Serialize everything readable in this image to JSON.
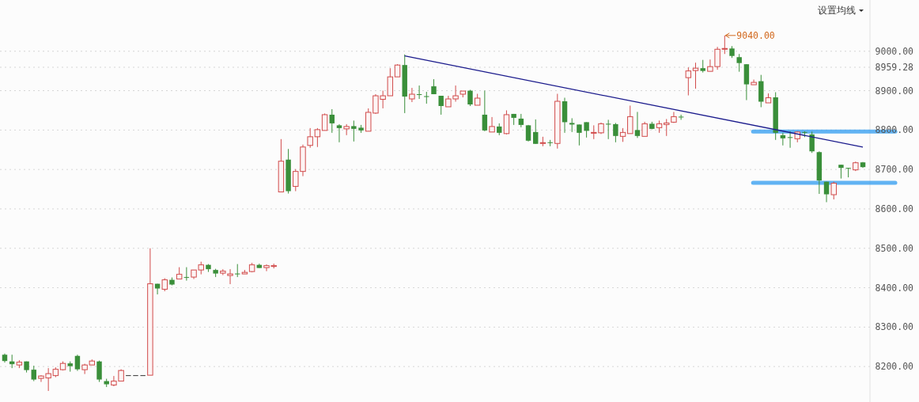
{
  "chart_data": {
    "type": "candlestick",
    "annotations": [
      "设置均线",
      "9040.00"
    ],
    "categories": [
      null,
      null,
      null,
      null,
      null,
      null,
      null,
      null,
      null,
      null,
      null,
      null,
      null,
      null,
      null,
      null,
      null,
      null,
      null,
      null,
      null,
      null,
      null,
      null,
      null,
      null,
      null,
      null,
      null,
      null,
      null,
      null,
      null,
      null,
      null,
      null,
      null,
      null,
      null,
      null,
      null,
      null,
      null,
      null,
      null,
      null,
      null,
      null,
      null,
      null,
      null,
      null,
      null,
      null,
      null,
      null,
      null,
      null,
      null,
      null,
      null,
      null,
      null,
      null,
      null,
      null,
      null,
      null,
      null,
      null,
      null,
      null,
      null,
      null,
      null,
      null,
      null,
      null,
      null,
      null,
      null,
      null,
      null,
      null,
      null,
      null,
      null,
      null,
      null,
      null,
      null,
      null,
      null,
      null,
      null,
      null,
      null,
      null,
      null,
      null,
      null,
      null,
      null,
      null,
      null,
      null,
      null,
      null,
      null,
      null,
      null,
      null,
      null,
      null,
      null,
      null,
      null,
      null,
      null
    ],
    "ohlc": [
      [
        8230,
        8233,
        8210,
        8214
      ],
      [
        8213,
        8230,
        8196,
        8206
      ],
      [
        8204,
        8216,
        8196,
        8211
      ],
      [
        8213,
        8213,
        8185,
        8191
      ],
      [
        8192,
        8202,
        8163,
        8167
      ],
      [
        8170,
        8178,
        8161,
        8176
      ],
      [
        8171,
        8196,
        8138,
        8182
      ],
      [
        8177,
        8198,
        8173,
        8193
      ],
      [
        8192,
        8213,
        8190,
        8208
      ],
      [
        8208,
        8213,
        8187,
        8201
      ],
      [
        8227,
        8230,
        8189,
        8193
      ],
      [
        8192,
        8207,
        8181,
        8204
      ],
      [
        8204,
        8218,
        8204,
        8214
      ],
      [
        8213,
        8215,
        8161,
        8167
      ],
      [
        8163,
        8169,
        8148,
        8155
      ],
      [
        8153,
        8176,
        8150,
        8163
      ],
      [
        8163,
        8193,
        8163,
        8190
      ],
      [
        8178,
        8178,
        8178,
        8178
      ],
      [
        8178,
        8178,
        8178,
        8178
      ],
      [
        8178,
        8178,
        8178,
        8178
      ],
      [
        8178,
        8500,
        8178,
        8410
      ],
      [
        8410,
        8410,
        8383,
        8398
      ],
      [
        8396,
        8424,
        8391,
        8420
      ],
      [
        8420,
        8426,
        8406,
        8408
      ],
      [
        8422,
        8452,
        8422,
        8434
      ],
      [
        8427,
        8452,
        8418,
        8426
      ],
      [
        8427,
        8445,
        8422,
        8445
      ],
      [
        8445,
        8466,
        8434,
        8458
      ],
      [
        8458,
        8460,
        8440,
        8447
      ],
      [
        8445,
        8448,
        8427,
        8436
      ],
      [
        8437,
        8447,
        8432,
        8442
      ],
      [
        8431,
        8447,
        8409,
        8435
      ],
      [
        8436,
        8460,
        8427,
        8435
      ],
      [
        8435,
        8445,
        8435,
        8439
      ],
      [
        8441,
        8463,
        8439,
        8458
      ],
      [
        8458,
        8461,
        8450,
        8450
      ],
      [
        8451,
        8459,
        8442,
        8456
      ],
      [
        8454,
        8461,
        8449,
        8456
      ],
      [
        8643,
        8777,
        8643,
        8721
      ],
      [
        8725,
        8752,
        8639,
        8645
      ],
      [
        8657,
        8701,
        8645,
        8695
      ],
      [
        8695,
        8763,
        8683,
        8757
      ],
      [
        8761,
        8805,
        8755,
        8783
      ],
      [
        8783,
        8805,
        8757,
        8801
      ],
      [
        8799,
        8842,
        8799,
        8839
      ],
      [
        8839,
        8853,
        8793,
        8817
      ],
      [
        8812,
        8815,
        8769,
        8805
      ],
      [
        8803,
        8815,
        8787,
        8809
      ],
      [
        8810,
        8824,
        8771,
        8803
      ],
      [
        8806,
        8813,
        8793,
        8799
      ],
      [
        8797,
        8855,
        8797,
        8845
      ],
      [
        8843,
        8891,
        8841,
        8887
      ],
      [
        8878,
        8900,
        8855,
        8887
      ],
      [
        8887,
        8957,
        8887,
        8935
      ],
      [
        8935,
        8967,
        8935,
        8965
      ],
      [
        8965,
        8992,
        8843,
        8885
      ],
      [
        8879,
        8907,
        8871,
        8891
      ],
      [
        8891,
        8913,
        8879,
        8890
      ],
      [
        8886,
        8897,
        8867,
        8884
      ],
      [
        8911,
        8929,
        8891,
        8891
      ],
      [
        8887,
        8887,
        8839,
        8861
      ],
      [
        8859,
        8887,
        8859,
        8879
      ],
      [
        8879,
        8913,
        8872,
        8887
      ],
      [
        8891,
        8899,
        8883,
        8899
      ],
      [
        8900,
        8902,
        8861,
        8865
      ],
      [
        8863,
        8892,
        8863,
        8881
      ],
      [
        8839,
        8900,
        8797,
        8799
      ],
      [
        8795,
        8833,
        8795,
        8809
      ],
      [
        8809,
        8817,
        8787,
        8793
      ],
      [
        8791,
        8850,
        8789,
        8839
      ],
      [
        8841,
        8841,
        8813,
        8831
      ],
      [
        8829,
        8841,
        8807,
        8813
      ],
      [
        8812,
        8813,
        8771,
        8773
      ],
      [
        8795,
        8827,
        8765,
        8765
      ],
      [
        8767,
        8783,
        8759,
        8768
      ],
      [
        8769,
        8775,
        8759,
        8768
      ],
      [
        8766,
        8892,
        8753,
        8873
      ],
      [
        8873,
        8882,
        8793,
        8820
      ],
      [
        8818,
        8830,
        8795,
        8814
      ],
      [
        8814,
        8814,
        8761,
        8793
      ],
      [
        8820,
        8820,
        8781,
        8798
      ],
      [
        8792,
        8812,
        8777,
        8794
      ],
      [
        8793,
        8819,
        8790,
        8816
      ],
      [
        8816,
        8826,
        8777,
        8814
      ],
      [
        8815,
        8818,
        8769,
        8785
      ],
      [
        8784,
        8805,
        8770,
        8794
      ],
      [
        8791,
        8862,
        8791,
        8834
      ],
      [
        8800,
        8846,
        8780,
        8785
      ],
      [
        8784,
        8821,
        8784,
        8816
      ],
      [
        8816,
        8821,
        8802,
        8803
      ],
      [
        8806,
        8824,
        8793,
        8816
      ],
      [
        8814,
        8828,
        8785,
        8818
      ],
      [
        8820,
        8846,
        8818,
        8834
      ],
      [
        8834,
        8839,
        8826,
        8833
      ],
      [
        8933,
        8959,
        8888,
        8950
      ],
      [
        8951,
        8971,
        8905,
        8957
      ],
      [
        8957,
        8978,
        8946,
        8950
      ],
      [
        8949,
        8979,
        8949,
        8961
      ],
      [
        8961,
        9011,
        8953,
        9005
      ],
      [
        9005,
        9040,
        8993,
        9007
      ],
      [
        9007,
        9013,
        8983,
        8988
      ],
      [
        8985,
        8993,
        8948,
        8970
      ],
      [
        8967,
        8967,
        8876,
        8916
      ],
      [
        8915,
        8928,
        8915,
        8921
      ],
      [
        8924,
        8940,
        8858,
        8872
      ],
      [
        8869,
        8893,
        8869,
        8882
      ],
      [
        8883,
        8896,
        8775,
        8793
      ],
      [
        8787,
        8793,
        8761,
        8779
      ],
      [
        8782,
        8797,
        8755,
        8781
      ],
      [
        8778,
        8797,
        8769,
        8795
      ],
      [
        8795,
        8797,
        8782,
        8793
      ],
      [
        8789,
        8796,
        8742,
        8746
      ],
      [
        8744,
        8746,
        8638,
        8672
      ],
      [
        8669,
        8669,
        8617,
        8637
      ],
      [
        8636,
        8669,
        8624,
        8665
      ],
      [
        8712,
        8712,
        8677,
        8704
      ],
      [
        8704,
        8704,
        8680,
        8702
      ],
      [
        8699,
        8720,
        8696,
        8717
      ],
      [
        8718,
        8719,
        8704,
        8706
      ]
    ],
    "series": [
      {
        "type": "line",
        "color": "#1a1a8c",
        "values": [
          null,
          null,
          null,
          null,
          null,
          null,
          null,
          null,
          null,
          null,
          null,
          null,
          null,
          null,
          null,
          null,
          null,
          null,
          null,
          null,
          null,
          null,
          null,
          null,
          null,
          null,
          null,
          null,
          null,
          null,
          null,
          null,
          null,
          null,
          null,
          null,
          null,
          null,
          null,
          null,
          null,
          null,
          null,
          null,
          null,
          null,
          null,
          null,
          null,
          null,
          null,
          null,
          null,
          null,
          null,
          8988,
          null,
          null,
          null,
          null,
          null,
          null,
          null,
          null,
          null,
          null,
          null,
          null,
          null,
          null,
          null,
          null,
          null,
          null,
          null,
          null,
          null,
          null,
          null,
          null,
          null,
          null,
          null,
          null,
          null,
          null,
          null,
          null,
          null,
          null,
          null,
          null,
          null,
          null,
          null,
          null,
          null,
          null,
          null,
          null,
          null,
          null,
          null,
          null,
          null,
          null,
          null,
          null,
          null,
          null,
          null,
          null,
          null,
          null,
          null,
          null,
          null,
          null,
          8757
        ]
      }
    ],
    "ref_lines": [
      {
        "axis": "y",
        "value": 8796,
        "color": "#3aa0f0"
      },
      {
        "axis": "y",
        "value": 8666,
        "color": "#3aa0f0"
      }
    ],
    "ylim": [
      8110,
      9130
    ],
    "yticks": [
      {
        "value": 8200,
        "label": "8200.00"
      },
      {
        "value": 8300,
        "label": "8300.00"
      },
      {
        "value": 8400,
        "label": "8400.00"
      },
      {
        "value": 8500,
        "label": "8500.00"
      },
      {
        "value": 8600,
        "label": "8600.00"
      },
      {
        "value": 8700,
        "label": "8700.00"
      },
      {
        "value": 8800,
        "label": "8800.00"
      },
      {
        "value": 8900,
        "label": "8900.00"
      },
      {
        "value": 8959.28,
        "label": "8959.28"
      },
      {
        "value": 9000,
        "label": "9000.00"
      }
    ],
    "grid": "y",
    "tick_labels": "y"
  }
}
